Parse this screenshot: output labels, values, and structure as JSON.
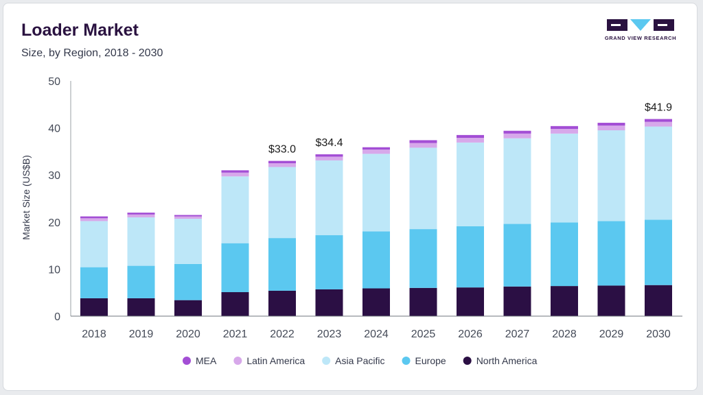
{
  "header": {
    "title": "Loader Market",
    "subtitle": "Size, by Region, 2018 - 2030"
  },
  "logo": {
    "text": "GRAND VIEW RESEARCH"
  },
  "chart_data": {
    "type": "bar",
    "stacked": true,
    "title": "Loader Market",
    "subtitle": "Size, by Region, 2018 - 2030",
    "xlabel": "",
    "ylabel": "Market Size (US$B)",
    "ylim": [
      0,
      50
    ],
    "yticks": [
      0,
      10,
      20,
      30,
      40,
      50
    ],
    "grid": false,
    "legend_position": "bottom",
    "categories": [
      "2018",
      "2019",
      "2020",
      "2021",
      "2022",
      "2023",
      "2024",
      "2025",
      "2026",
      "2027",
      "2028",
      "2029",
      "2030"
    ],
    "series": [
      {
        "name": "North America",
        "color": "#2b0f44",
        "values": [
          3.8,
          3.8,
          3.4,
          5.1,
          5.4,
          5.7,
          5.9,
          6.0,
          6.1,
          6.3,
          6.4,
          6.5,
          6.6
        ]
      },
      {
        "name": "Europe",
        "color": "#5bc8f0",
        "values": [
          6.6,
          6.9,
          7.7,
          10.4,
          11.2,
          11.5,
          12.1,
          12.5,
          13.0,
          13.3,
          13.5,
          13.7,
          13.9
        ]
      },
      {
        "name": "Asia Pacific",
        "color": "#bde7f8",
        "values": [
          9.8,
          10.3,
          9.6,
          14.2,
          15.1,
          15.9,
          16.5,
          17.3,
          17.8,
          18.2,
          18.9,
          19.3,
          19.8
        ]
      },
      {
        "name": "Latin America",
        "color": "#d7a8ea",
        "values": [
          0.6,
          0.6,
          0.5,
          0.8,
          0.8,
          0.8,
          0.9,
          1.0,
          1.0,
          1.0,
          1.0,
          1.0,
          1.0
        ]
      },
      {
        "name": "MEA",
        "color": "#a34ed5",
        "values": [
          0.4,
          0.4,
          0.3,
          0.5,
          0.5,
          0.5,
          0.5,
          0.6,
          0.6,
          0.6,
          0.6,
          0.6,
          0.6
        ]
      }
    ],
    "annotations": [
      {
        "category": "2022",
        "text": "$33.0"
      },
      {
        "category": "2023",
        "text": "$34.4"
      },
      {
        "category": "2030",
        "text": "$41.9"
      }
    ],
    "legend_order": [
      "MEA",
      "Latin America",
      "Asia Pacific",
      "Europe",
      "North America"
    ]
  }
}
